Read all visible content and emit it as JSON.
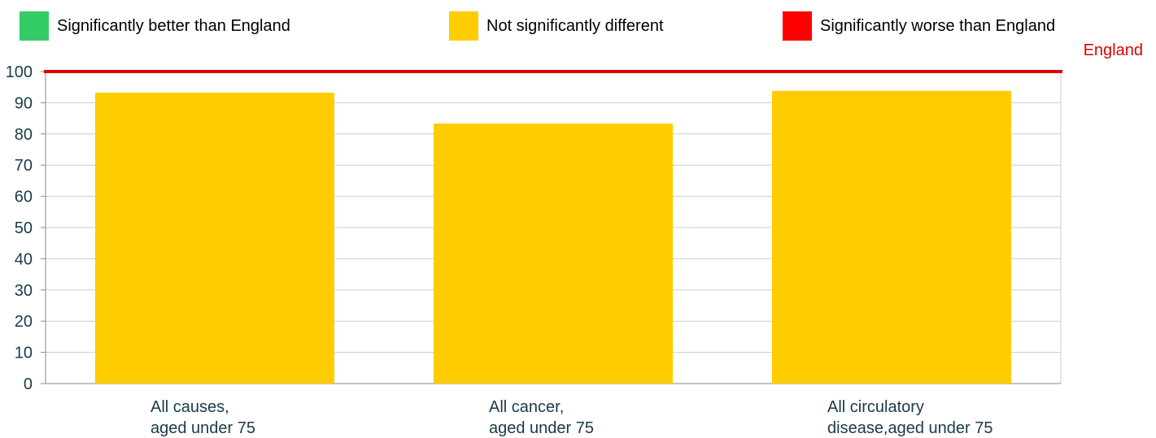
{
  "legend": [
    {
      "label": "Significantly better than England",
      "color": "#33cc66"
    },
    {
      "label": "Not significantly different",
      "color": "#ffcc00"
    },
    {
      "label": "Significantly worse than England",
      "color": "#ff0000"
    }
  ],
  "chart_data": {
    "type": "bar",
    "categories": [
      [
        "All causes,",
        "aged under 75"
      ],
      [
        "All cancer,",
        "aged under 75"
      ],
      [
        "All circulatory",
        "disease,aged under 75"
      ]
    ],
    "values": [
      93.2,
      83.3,
      93.8
    ],
    "bar_color": "#ffcc00",
    "ylim": [
      0,
      100
    ],
    "yticks": [
      0,
      10,
      20,
      30,
      40,
      50,
      60,
      70,
      80,
      90,
      100
    ],
    "reference_line": {
      "label": "England",
      "value": 100,
      "color": "#e00000"
    },
    "grid": true
  }
}
